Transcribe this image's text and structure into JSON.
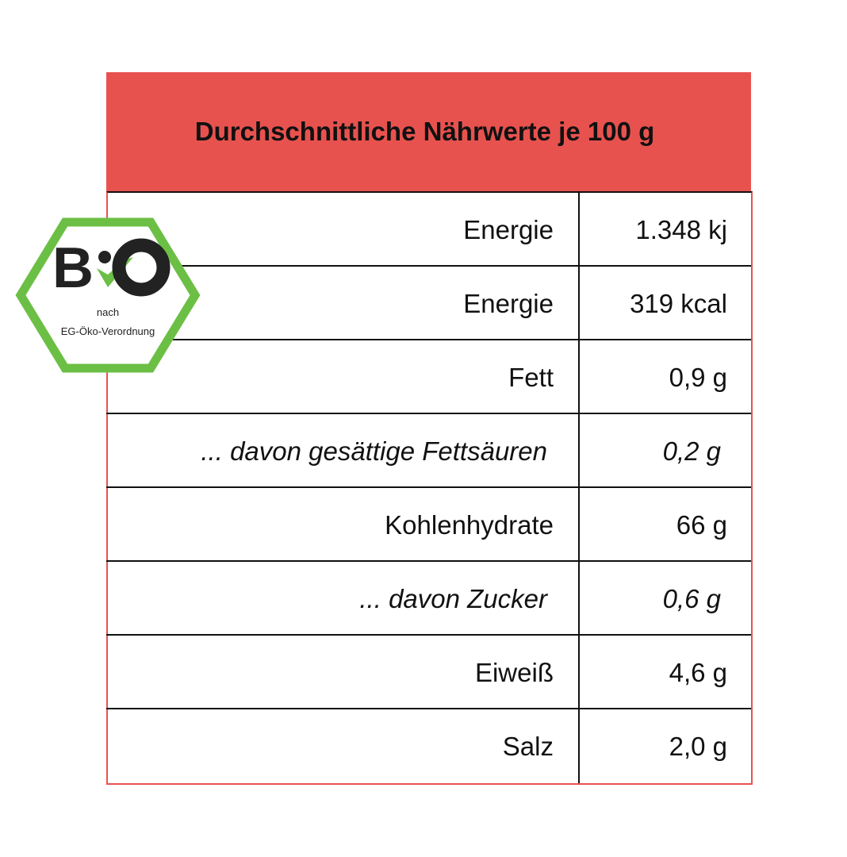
{
  "title": "Durchschnittliche Nährwerte je 100 g",
  "rows": [
    {
      "label": "Energie",
      "value": "1.348 kj",
      "italic": false
    },
    {
      "label": "Energie",
      "value": "319 kcal",
      "italic": false
    },
    {
      "label": "Fett",
      "value": "0,9 g",
      "italic": false
    },
    {
      "label": "... davon gesättige Fettsäuren",
      "value": "0,2 g",
      "italic": true
    },
    {
      "label": "Kohlenhydrate",
      "value": "66 g",
      "italic": false
    },
    {
      "label": "... davon Zucker",
      "value": "0,6 g",
      "italic": true
    },
    {
      "label": "Eiweiß",
      "value": "4,6 g",
      "italic": false
    },
    {
      "label": "Salz",
      "value": "2,0 g",
      "italic": false
    }
  ],
  "logo": {
    "brand": "BIO",
    "line1": "nach",
    "line2": "EG-Öko-Verordnung",
    "green": "#6cbf45"
  },
  "colors": {
    "header": "#e8524e"
  }
}
